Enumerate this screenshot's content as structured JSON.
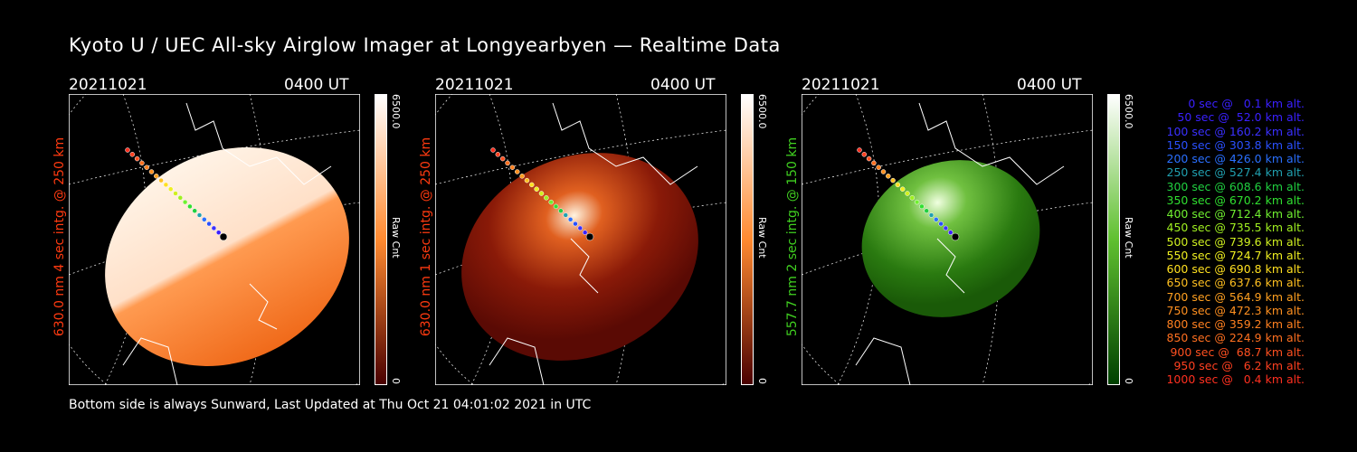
{
  "title": "Kyoto U / UEC All-sky Airglow Imager at Longyearbyen — Realtime Data",
  "footer": "Bottom side is always Sunward, Last Updated at Thu Oct 21 04:01:02 2021 in UTC",
  "panels": [
    {
      "date": "20211021",
      "time": "0400 UT",
      "side_label": "630.0 nm 4 sec intg. @ 250 km",
      "side_color": "#ff3a10",
      "colorbar": {
        "max": "6500.0",
        "min": "0",
        "label": "Raw Cnt",
        "top": "#ffffff",
        "bottom": "#4a0000"
      },
      "image_color": "orange"
    },
    {
      "date": "20211021",
      "time": "0400 UT",
      "side_label": "630.0 nm 1 sec intg. @ 250 km",
      "side_color": "#ff3a10",
      "colorbar": {
        "max": "6500.0",
        "min": "0",
        "label": "Raw Cnt",
        "top": "#ffffff",
        "bottom": "#4a0000"
      },
      "image_color": "red"
    },
    {
      "date": "20211021",
      "time": "0400 UT",
      "side_label": "557.7 nm 2 sec intg. @ 150 km",
      "side_color": "#40d020",
      "colorbar": {
        "max": "6500.0",
        "min": "0",
        "label": "Raw Cnt",
        "top": "#ffffff",
        "bottom": "#004000"
      },
      "image_color": "green"
    }
  ],
  "legend": [
    {
      "text": "   0 sec @   0.1 km alt.",
      "color": "#3a20ff"
    },
    {
      "text": "  50 sec @  52.0 km alt.",
      "color": "#3a20ff"
    },
    {
      "text": " 100 sec @ 160.2 km alt.",
      "color": "#3a30ff"
    },
    {
      "text": " 150 sec @ 303.8 km alt.",
      "color": "#2a50ff"
    },
    {
      "text": " 200 sec @ 426.0 km alt.",
      "color": "#2a70ff"
    },
    {
      "text": " 250 sec @ 527.4 km alt.",
      "color": "#20a0b0"
    },
    {
      "text": " 300 sec @ 608.6 km alt.",
      "color": "#20d040"
    },
    {
      "text": " 350 sec @ 670.2 km alt.",
      "color": "#30e030"
    },
    {
      "text": " 400 sec @ 712.4 km alt.",
      "color": "#70f030"
    },
    {
      "text": " 450 sec @ 735.5 km alt.",
      "color": "#a0f020"
    },
    {
      "text": " 500 sec @ 739.6 km alt.",
      "color": "#d0f020"
    },
    {
      "text": " 550 sec @ 724.7 km alt.",
      "color": "#f0f020"
    },
    {
      "text": " 600 sec @ 690.8 km alt.",
      "color": "#ffe020"
    },
    {
      "text": " 650 sec @ 637.6 km alt.",
      "color": "#ffc020"
    },
    {
      "text": " 700 sec @ 564.9 km alt.",
      "color": "#ffa020"
    },
    {
      "text": " 750 sec @ 472.3 km alt.",
      "color": "#ff9020"
    },
    {
      "text": " 800 sec @ 359.2 km alt.",
      "color": "#ff8020"
    },
    {
      "text": " 850 sec @ 224.9 km alt.",
      "color": "#ff7020"
    },
    {
      "text": " 900 sec @  68.7 km alt.",
      "color": "#ff5020"
    },
    {
      "text": " 950 sec @   6.2 km alt.",
      "color": "#ff4020"
    },
    {
      "text": "1000 sec @   0.4 km alt.",
      "color": "#ff3020"
    }
  ]
}
